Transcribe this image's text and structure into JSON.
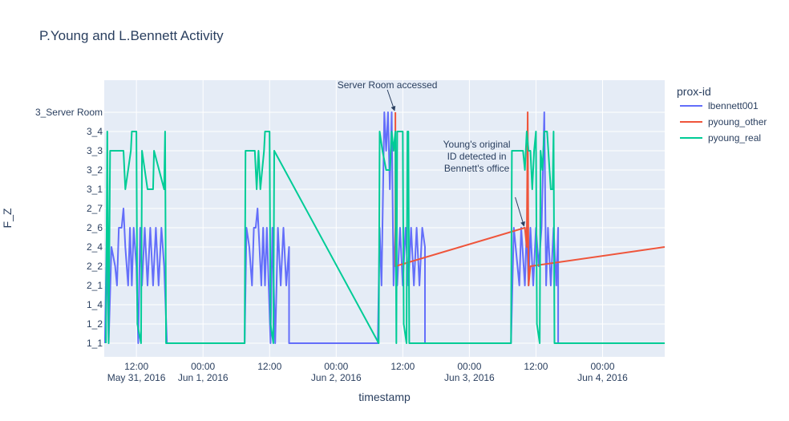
{
  "chart_data": {
    "type": "line",
    "title": "P.Young and L.Bennett Activity",
    "xlabel": "timestamp",
    "ylabel": "F_Z",
    "categories_y": [
      "1_1",
      "1_2",
      "1_4",
      "2_1",
      "2_2",
      "2_4",
      "2_6",
      "2_7",
      "3_1",
      "3_2",
      "3_3",
      "3_4",
      "3_Server Room"
    ],
    "x_range": [
      "2016-05-31 06:12",
      "2016-06-04 11:12"
    ],
    "x_ticks": [
      {
        "t": "2016-05-31 12:00",
        "line1": "12:00",
        "line2": "May 31, 2016"
      },
      {
        "t": "2016-06-01 00:00",
        "line1": "00:00",
        "line2": "Jun 1, 2016"
      },
      {
        "t": "2016-06-01 12:00",
        "line1": "12:00",
        "line2": ""
      },
      {
        "t": "2016-06-02 00:00",
        "line1": "00:00",
        "line2": "Jun 2, 2016"
      },
      {
        "t": "2016-06-02 12:00",
        "line1": "12:00",
        "line2": ""
      },
      {
        "t": "2016-06-03 00:00",
        "line1": "00:00",
        "line2": "Jun 3, 2016"
      },
      {
        "t": "2016-06-03 12:00",
        "line1": "12:00",
        "line2": ""
      },
      {
        "t": "2016-06-04 00:00",
        "line1": "00:00",
        "line2": "Jun 4, 2016"
      }
    ],
    "grid": true,
    "legend": {
      "title": "prox-id",
      "placement": "right"
    },
    "series": [
      {
        "name": "lbennett001",
        "color": "#636efa",
        "points": [
          [
            "2016-05-31 06:20",
            "1_1"
          ],
          [
            "2016-05-31 06:40",
            "2_6"
          ],
          [
            "2016-05-31 07:00",
            "1_1"
          ],
          [
            "2016-05-31 07:30",
            "2_4"
          ],
          [
            "2016-05-31 08:10",
            "2_2"
          ],
          [
            "2016-05-31 08:30",
            "2_1"
          ],
          [
            "2016-05-31 08:50",
            "2_6"
          ],
          [
            "2016-05-31 09:20",
            "2_6"
          ],
          [
            "2016-05-31 09:40",
            "2_7"
          ],
          [
            "2016-05-31 10:00",
            "2_4"
          ],
          [
            "2016-05-31 10:30",
            "2_1"
          ],
          [
            "2016-05-31 10:50",
            "2_6"
          ],
          [
            "2016-05-31 11:10",
            "2_1"
          ],
          [
            "2016-05-31 11:30",
            "2_6"
          ],
          [
            "2016-05-31 12:00",
            "2_2"
          ],
          [
            "2016-05-31 12:20",
            "1_1"
          ],
          [
            "2016-05-31 12:40",
            "2_6"
          ],
          [
            "2016-05-31 13:00",
            "2_1"
          ],
          [
            "2016-05-31 13:30",
            "2_6"
          ],
          [
            "2016-05-31 14:00",
            "2_1"
          ],
          [
            "2016-05-31 14:30",
            "2_6"
          ],
          [
            "2016-05-31 15:00",
            "2_1"
          ],
          [
            "2016-05-31 15:30",
            "2_6"
          ],
          [
            "2016-05-31 16:00",
            "2_1"
          ],
          [
            "2016-05-31 16:30",
            "2_6"
          ],
          [
            "2016-05-31 17:00",
            "2_2"
          ],
          [
            "2016-05-31 17:30",
            "1_1"
          ],
          [
            "2016-06-01 07:30",
            "1_1"
          ],
          [
            "2016-06-01 07:50",
            "2_6"
          ],
          [
            "2016-06-01 08:20",
            "2_4"
          ],
          [
            "2016-06-01 08:50",
            "2_1"
          ],
          [
            "2016-06-01 09:10",
            "2_6"
          ],
          [
            "2016-06-01 09:30",
            "2_6"
          ],
          [
            "2016-06-01 09:50",
            "2_7"
          ],
          [
            "2016-06-01 10:10",
            "2_4"
          ],
          [
            "2016-06-01 10:30",
            "2_1"
          ],
          [
            "2016-06-01 10:50",
            "2_6"
          ],
          [
            "2016-06-01 11:10",
            "2_1"
          ],
          [
            "2016-06-01 11:30",
            "2_6"
          ],
          [
            "2016-06-01 11:50",
            "2_1"
          ],
          [
            "2016-06-01 12:10",
            "1_1"
          ],
          [
            "2016-06-01 12:30",
            "2_6"
          ],
          [
            "2016-06-01 13:00",
            "1_1"
          ],
          [
            "2016-06-01 13:30",
            "2_6"
          ],
          [
            "2016-06-01 14:00",
            "2_1"
          ],
          [
            "2016-06-01 14:30",
            "2_6"
          ],
          [
            "2016-06-01 15:00",
            "2_1"
          ],
          [
            "2016-06-01 15:30",
            "2_4"
          ],
          [
            "2016-06-01 15:30",
            "1_1"
          ],
          [
            "2016-06-02 07:30",
            "1_1"
          ],
          [
            "2016-06-02 07:50",
            "2_6"
          ],
          [
            "2016-06-02 08:10",
            "2_1"
          ],
          [
            "2016-06-02 08:40",
            "3_Server Room"
          ],
          [
            "2016-06-02 09:00",
            "3_3"
          ],
          [
            "2016-06-02 09:20",
            "3_Server Room"
          ],
          [
            "2016-06-02 09:40",
            "3_1"
          ],
          [
            "2016-06-02 10:00",
            "3_Server Room"
          ],
          [
            "2016-06-02 10:20",
            "2_1"
          ],
          [
            "2016-06-02 10:40",
            "2_6"
          ],
          [
            "2016-06-02 11:00",
            "2_1"
          ],
          [
            "2016-06-02 11:30",
            "2_6"
          ],
          [
            "2016-06-02 12:00",
            "2_1"
          ],
          [
            "2016-06-02 12:30",
            "2_6"
          ],
          [
            "2016-06-02 13:00",
            "2_1"
          ],
          [
            "2016-06-02 13:30",
            "2_6"
          ],
          [
            "2016-06-02 14:00",
            "2_1"
          ],
          [
            "2016-06-02 14:30",
            "2_6"
          ],
          [
            "2016-06-02 15:00",
            "2_1"
          ],
          [
            "2016-06-02 15:30",
            "2_6"
          ],
          [
            "2016-06-02 16:00",
            "2_4"
          ],
          [
            "2016-06-02 16:00",
            "1_1"
          ],
          [
            "2016-06-03 07:30",
            "1_1"
          ],
          [
            "2016-06-03 08:00",
            "2_6"
          ],
          [
            "2016-06-03 09:00",
            "2_1"
          ],
          [
            "2016-06-03 09:20",
            "2_6"
          ],
          [
            "2016-06-03 10:00",
            "2_1"
          ],
          [
            "2016-06-03 10:20",
            "2_6"
          ],
          [
            "2016-06-03 10:40",
            "2_1"
          ],
          [
            "2016-06-03 11:00",
            "2_6"
          ],
          [
            "2016-06-03 11:30",
            "2_1"
          ],
          [
            "2016-06-03 12:00",
            "2_6"
          ],
          [
            "2016-06-03 12:30",
            "2_2"
          ],
          [
            "2016-06-03 13:00",
            "2_6"
          ],
          [
            "2016-06-03 13:30",
            "3_Server Room"
          ],
          [
            "2016-06-03 13:50",
            "2_1"
          ],
          [
            "2016-06-03 14:10",
            "2_6"
          ],
          [
            "2016-06-03 14:40",
            "2_1"
          ],
          [
            "2016-06-03 15:10",
            "2_6"
          ],
          [
            "2016-06-03 15:40",
            "2_1"
          ],
          [
            "2016-06-03 16:00",
            "2_6"
          ],
          [
            "2016-06-03 16:00",
            "1_1"
          ],
          [
            "2016-06-04 11:12",
            "1_1"
          ]
        ]
      },
      {
        "name": "pyoung_other",
        "color": "#ef553b",
        "points": [
          [
            "2016-06-02 10:40",
            "3_Server Room"
          ],
          [
            "2016-06-02 10:40",
            "2_2"
          ],
          [
            "2016-06-03 10:00",
            "2_6"
          ],
          [
            "2016-06-03 10:20",
            "2_4"
          ],
          [
            "2016-06-03 10:30",
            "3_Server Room"
          ],
          [
            "2016-06-03 10:40",
            "2_1"
          ],
          [
            "2016-06-03 11:00",
            "2_2"
          ],
          [
            "2016-06-04 11:12",
            "2_4"
          ]
        ]
      },
      {
        "name": "pyoung_real",
        "color": "#00cc96",
        "points": [
          [
            "2016-05-31 06:30",
            "1_1"
          ],
          [
            "2016-05-31 06:45",
            "3_4"
          ],
          [
            "2016-05-31 07:00",
            "1_1"
          ],
          [
            "2016-05-31 07:15",
            "3_3"
          ],
          [
            "2016-05-31 09:40",
            "3_3"
          ],
          [
            "2016-05-31 10:00",
            "3_1"
          ],
          [
            "2016-05-31 10:30",
            "3_2"
          ],
          [
            "2016-05-31 11:00",
            "3_3"
          ],
          [
            "2016-05-31 11:10",
            "3_4"
          ],
          [
            "2016-05-31 12:00",
            "3_4"
          ],
          [
            "2016-05-31 12:10",
            "1_2"
          ],
          [
            "2016-05-31 12:50",
            "1_1"
          ],
          [
            "2016-05-31 13:00",
            "3_3"
          ],
          [
            "2016-05-31 14:00",
            "3_1"
          ],
          [
            "2016-05-31 15:00",
            "3_1"
          ],
          [
            "2016-05-31 15:10",
            "3_3"
          ],
          [
            "2016-05-31 17:00",
            "3_1"
          ],
          [
            "2016-05-31 17:10",
            "3_4"
          ],
          [
            "2016-05-31 17:20",
            "1_1"
          ],
          [
            "2016-06-01 07:30",
            "1_1"
          ],
          [
            "2016-06-01 07:40",
            "3_3"
          ],
          [
            "2016-06-01 09:20",
            "3_3"
          ],
          [
            "2016-06-01 09:40",
            "3_1"
          ],
          [
            "2016-06-01 10:00",
            "3_3"
          ],
          [
            "2016-06-01 10:20",
            "3_1"
          ],
          [
            "2016-06-01 11:00",
            "3_3"
          ],
          [
            "2016-06-01 11:10",
            "3_4"
          ],
          [
            "2016-06-01 12:00",
            "3_4"
          ],
          [
            "2016-06-01 12:10",
            "1_2"
          ],
          [
            "2016-06-01 12:40",
            "1_1"
          ],
          [
            "2016-06-01 12:50",
            "3_3"
          ],
          [
            "2016-06-02 07:40",
            "1_1"
          ],
          [
            "2016-06-02 07:50",
            "3_4"
          ],
          [
            "2016-06-02 08:20",
            "3_3"
          ],
          [
            "2016-06-02 09:00",
            "3_2"
          ],
          [
            "2016-06-02 09:40",
            "3_2"
          ],
          [
            "2016-06-02 10:00",
            "3_4"
          ],
          [
            "2016-06-02 10:20",
            "3_3"
          ],
          [
            "2016-06-02 10:40",
            "3_4"
          ],
          [
            "2016-06-02 10:50",
            "1_1"
          ],
          [
            "2016-06-02 11:00",
            "3_4"
          ],
          [
            "2016-06-02 12:00",
            "3_4"
          ],
          [
            "2016-06-02 12:10",
            "1_2"
          ],
          [
            "2016-06-02 12:40",
            "1_1"
          ],
          [
            "2016-06-02 12:50",
            "3_4"
          ],
          [
            "2016-06-02 13:00",
            "3_4"
          ],
          [
            "2016-06-02 13:10",
            "1_1"
          ],
          [
            "2016-06-03 07:30",
            "1_1"
          ],
          [
            "2016-06-03 07:40",
            "3_3"
          ],
          [
            "2016-06-03 09:40",
            "3_3"
          ],
          [
            "2016-06-03 10:00",
            "3_2"
          ],
          [
            "2016-06-03 10:20",
            "3_4"
          ],
          [
            "2016-06-03 10:40",
            "3_3"
          ],
          [
            "2016-06-03 11:00",
            "3_3"
          ],
          [
            "2016-06-03 11:20",
            "3_1"
          ],
          [
            "2016-06-03 11:40",
            "3_3"
          ],
          [
            "2016-06-03 12:00",
            "3_4"
          ],
          [
            "2016-06-03 12:10",
            "1_2"
          ],
          [
            "2016-06-03 12:40",
            "1_1"
          ],
          [
            "2016-06-03 12:50",
            "3_3"
          ],
          [
            "2016-06-03 13:10",
            "3_2"
          ],
          [
            "2016-06-03 13:30",
            "3_4"
          ],
          [
            "2016-06-03 14:00",
            "3_4"
          ],
          [
            "2016-06-03 14:40",
            "3_1"
          ],
          [
            "2016-06-03 15:00",
            "3_1"
          ],
          [
            "2016-06-03 15:10",
            "3_4"
          ],
          [
            "2016-06-03 15:20",
            "1_1"
          ],
          [
            "2016-06-04 11:12",
            "1_1"
          ]
        ]
      }
    ],
    "annotations": [
      {
        "name": "annotation-server-room",
        "lines": [
          "Server Room accessed"
        ],
        "x": "2016-06-02 10:40",
        "y": "3_Server Room"
      },
      {
        "name": "annotation-young-id",
        "lines": [
          "Young's original",
          "ID detected in",
          "Bennett's office"
        ],
        "x": "2016-06-03 10:00",
        "y": "2_6"
      }
    ]
  }
}
